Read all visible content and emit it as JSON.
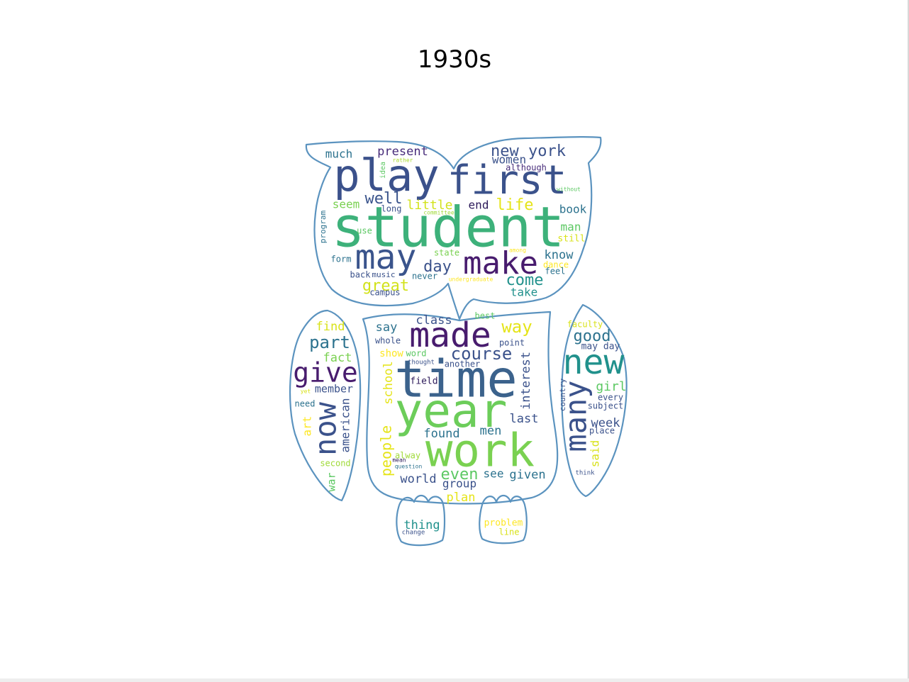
{
  "title": "1930s",
  "colors": {
    "outline": "#5b93bf",
    "palette": [
      "#440154",
      "#472c7a",
      "#3b518b",
      "#2c718e",
      "#21908d",
      "#27ad81",
      "#5cc863",
      "#aadc32",
      "#fde725"
    ]
  },
  "words": [
    {
      "t": "student",
      "c": "#3db17a",
      "s": 78
    },
    {
      "t": "play",
      "c": "#3b518b",
      "s": 62
    },
    {
      "t": "first",
      "c": "#3b528b",
      "s": 56
    },
    {
      "t": "may",
      "c": "#3a548c",
      "s": 48
    },
    {
      "t": "make",
      "c": "#481c6e",
      "s": 44
    },
    {
      "t": "well",
      "c": "#3a548c",
      "s": 22
    },
    {
      "t": "present",
      "c": "#472c7a",
      "s": 17
    },
    {
      "t": "much",
      "c": "#2c728e",
      "s": 16
    },
    {
      "t": "new york",
      "c": "#3b528b",
      "s": 22
    },
    {
      "t": "women",
      "c": "#3b528b",
      "s": 16
    },
    {
      "t": "although",
      "c": "#472c7a",
      "s": 12
    },
    {
      "t": "idea",
      "c": "#5cc863",
      "s": 10
    },
    {
      "t": "rather",
      "c": "#aadc32",
      "s": 8
    },
    {
      "t": "without",
      "c": "#5cc863",
      "s": 8
    },
    {
      "t": "seem",
      "c": "#7ad151",
      "s": 16
    },
    {
      "t": "long",
      "c": "#3b528b",
      "s": 12
    },
    {
      "t": "little",
      "c": "#d2e21b",
      "s": 18
    },
    {
      "t": "committee",
      "c": "#a0da39",
      "s": 8
    },
    {
      "t": "end",
      "c": "#2c1a5a",
      "s": 16
    },
    {
      "t": "life",
      "c": "#e5e419",
      "s": 22
    },
    {
      "t": "book",
      "c": "#2c728e",
      "s": 16
    },
    {
      "t": "man",
      "c": "#5cc863",
      "s": 16
    },
    {
      "t": "still",
      "c": "#d8e219",
      "s": 13
    },
    {
      "t": "program",
      "c": "#2c728e",
      "s": 11
    },
    {
      "t": "use",
      "c": "#5cc863",
      "s": 12
    },
    {
      "t": "state",
      "c": "#7ad151",
      "s": 12
    },
    {
      "t": "among",
      "c": "#fde725",
      "s": 8
    },
    {
      "t": "know",
      "c": "#2c728e",
      "s": 17
    },
    {
      "t": "day",
      "c": "#3b528b",
      "s": 22
    },
    {
      "t": "dance",
      "c": "#fde725",
      "s": 12
    },
    {
      "t": "feel",
      "c": "#2c728e",
      "s": 12
    },
    {
      "t": "form",
      "c": "#2c728e",
      "s": 12
    },
    {
      "t": "back",
      "c": "#3b528b",
      "s": 12
    },
    {
      "t": "music",
      "c": "#3b528b",
      "s": 11
    },
    {
      "t": "never",
      "c": "#2c728e",
      "s": 12
    },
    {
      "t": "undergraduate",
      "c": "#fde725",
      "s": 8
    },
    {
      "t": "come",
      "c": "#21918c",
      "s": 22
    },
    {
      "t": "great",
      "c": "#d2e21b",
      "s": 22
    },
    {
      "t": "campus",
      "c": "#3b528b",
      "s": 12
    },
    {
      "t": "take",
      "c": "#21918c",
      "s": 16
    },
    {
      "t": "find",
      "c": "#d8e219",
      "s": 17
    },
    {
      "t": "part",
      "c": "#2c728e",
      "s": 24
    },
    {
      "t": "fact",
      "c": "#7ad151",
      "s": 17
    },
    {
      "t": "give",
      "c": "#481c6e",
      "s": 38
    },
    {
      "t": "member",
      "c": "#3b528b",
      "s": 15
    },
    {
      "t": "yet",
      "c": "#d8e219",
      "s": 8
    },
    {
      "t": "need",
      "c": "#2c728e",
      "s": 12
    },
    {
      "t": "now",
      "c": "#3b528b",
      "s": 42
    },
    {
      "t": "american",
      "c": "#3b528b",
      "s": 16
    },
    {
      "t": "art",
      "c": "#fde725",
      "s": 16
    },
    {
      "t": "second",
      "c": "#a0da39",
      "s": 12
    },
    {
      "t": "war",
      "c": "#5cc863",
      "s": 15
    },
    {
      "t": "class",
      "c": "#3b528b",
      "s": 17
    },
    {
      "t": "best",
      "c": "#5cc863",
      "s": 12
    },
    {
      "t": "say",
      "c": "#2c728e",
      "s": 17
    },
    {
      "t": "made",
      "c": "#481c6e",
      "s": 48
    },
    {
      "t": "way",
      "c": "#e5e419",
      "s": 24
    },
    {
      "t": "whole",
      "c": "#3b528b",
      "s": 12
    },
    {
      "t": "show",
      "c": "#fde725",
      "s": 14
    },
    {
      "t": "word",
      "c": "#5cc863",
      "s": 12
    },
    {
      "t": "thought",
      "c": "#3b528b",
      "s": 9
    },
    {
      "t": "another",
      "c": "#3b528b",
      "s": 12
    },
    {
      "t": "point",
      "c": "#3b528b",
      "s": 12
    },
    {
      "t": "course",
      "c": "#3b528b",
      "s": 24
    },
    {
      "t": "time",
      "c": "#3b628c",
      "s": 72
    },
    {
      "t": "field",
      "c": "#2c1a5a",
      "s": 13
    },
    {
      "t": "interest",
      "c": "#3b528b",
      "s": 17
    },
    {
      "t": "school",
      "c": "#e5e419",
      "s": 17
    },
    {
      "t": "year",
      "c": "#6ccd5a",
      "s": 66
    },
    {
      "t": "people",
      "c": "#e5e419",
      "s": 20
    },
    {
      "t": "last",
      "c": "#3b528b",
      "s": 17
    },
    {
      "t": "found",
      "c": "#2c728e",
      "s": 17
    },
    {
      "t": "men",
      "c": "#2c728e",
      "s": 17
    },
    {
      "t": "work",
      "c": "#7ad151",
      "s": 64
    },
    {
      "t": "alway",
      "c": "#a0da39",
      "s": 12
    },
    {
      "t": "mean",
      "c": "#2c1a5a",
      "s": 8
    },
    {
      "t": "question",
      "c": "#2c728e",
      "s": 8
    },
    {
      "t": "even",
      "c": "#5cc863",
      "s": 22
    },
    {
      "t": "see",
      "c": "#2c728e",
      "s": 16
    },
    {
      "t": "given",
      "c": "#2c728e",
      "s": 17
    },
    {
      "t": "world",
      "c": "#3b528b",
      "s": 17
    },
    {
      "t": "group",
      "c": "#3b528b",
      "s": 16
    },
    {
      "t": "plan",
      "c": "#e5e419",
      "s": 17
    },
    {
      "t": "thing",
      "c": "#21918c",
      "s": 17
    },
    {
      "t": "change",
      "c": "#3b528b",
      "s": 9
    },
    {
      "t": "problem",
      "c": "#fde725",
      "s": 13
    },
    {
      "t": "line",
      "c": "#d8e219",
      "s": 12
    },
    {
      "t": "faculty",
      "c": "#d8e219",
      "s": 12
    },
    {
      "t": "good",
      "c": "#2c728e",
      "s": 22
    },
    {
      "t": "may day",
      "c": "#3b528b",
      "s": 13
    },
    {
      "t": "new",
      "c": "#21918c",
      "s": 48
    },
    {
      "t": "many",
      "c": "#3b528b",
      "s": 42
    },
    {
      "t": "country",
      "c": "#3b528b",
      "s": 11
    },
    {
      "t": "girl",
      "c": "#5cc863",
      "s": 18
    },
    {
      "t": "every",
      "c": "#3b528b",
      "s": 12
    },
    {
      "t": "subject",
      "c": "#3b528b",
      "s": 12
    },
    {
      "t": "week",
      "c": "#3b528b",
      "s": 17
    },
    {
      "t": "place",
      "c": "#3b528b",
      "s": 12
    },
    {
      "t": "said",
      "c": "#d8e219",
      "s": 16
    },
    {
      "t": "think",
      "c": "#3b528b",
      "s": 9
    }
  ]
}
